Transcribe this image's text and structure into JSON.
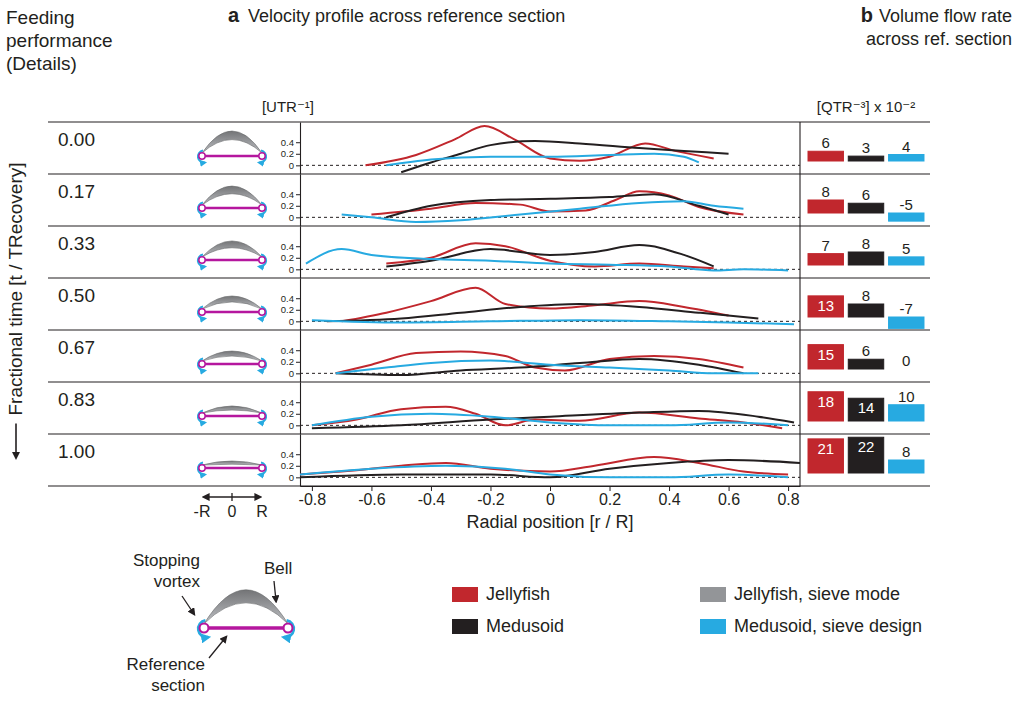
{
  "figure": {
    "heading": "Feeding performance (Details)",
    "time_axis_label": "Fractional time [t / TRecovery]",
    "times": [
      {
        "value": 0,
        "label": "0.00"
      },
      {
        "value": 0.17,
        "label": "0.17"
      },
      {
        "value": 0.33,
        "label": "0.33"
      },
      {
        "value": 0.5,
        "label": "0.50"
      },
      {
        "value": 0.67,
        "label": "0.67"
      },
      {
        "value": 0.83,
        "label": "0.83"
      },
      {
        "value": 1,
        "label": "1.00"
      }
    ],
    "schematic_axis": [
      "-R",
      "0",
      "R"
    ],
    "schematic_labels": {
      "vortex": "Stopping vortex",
      "bell": "Bell",
      "section": "Reference section"
    },
    "bell_legend": {
      "name": "Jellyfish, sieve mode",
      "color": "#939598"
    }
  },
  "chart_data": [
    {
      "type": "line",
      "panel_label": "a",
      "title": "Velocity profile across reference section",
      "ylabel": "[UTR⁻¹]",
      "xlabel": "Radial position [r / R]",
      "xlim": [
        -0.84,
        0.84
      ],
      "xticks": [
        -0.8,
        -0.6,
        -0.4,
        -0.2,
        0,
        0.2,
        0.4,
        0.6,
        0.8
      ],
      "ylim": [
        -0.15,
        0.75
      ],
      "yticks": [
        0,
        0.2,
        0.4
      ],
      "legend": "bottom",
      "series": [
        {
          "name": "Jellyfish",
          "color": "#c1272d",
          "rows": [
            {
              "x": [
                -0.62,
                -0.45,
                -0.32,
                -0.22,
                -0.12,
                0,
                0.1,
                0.2,
                0.32,
                0.42,
                0.55
              ],
              "values": [
                0.0,
                0.18,
                0.45,
                0.68,
                0.45,
                0.12,
                0.08,
                0.15,
                0.38,
                0.25,
                0.12
              ]
            },
            {
              "x": [
                -0.6,
                -0.4,
                -0.25,
                -0.1,
                0,
                0.12,
                0.22,
                0.3,
                0.4,
                0.5,
                0.65
              ],
              "values": [
                0.05,
                0.15,
                0.25,
                0.22,
                0.1,
                0.12,
                0.3,
                0.45,
                0.38,
                0.18,
                0.05
              ]
            },
            {
              "x": [
                -0.55,
                -0.4,
                -0.25,
                -0.15,
                0,
                0.15,
                0.3,
                0.45,
                0.55
              ],
              "values": [
                0.1,
                0.2,
                0.45,
                0.4,
                0.15,
                0.05,
                0.1,
                0.05,
                0.02
              ]
            },
            {
              "x": [
                -0.7,
                -0.55,
                -0.4,
                -0.25,
                -0.15,
                0,
                0.15,
                0.3,
                0.45,
                0.6
              ],
              "values": [
                0.0,
                0.15,
                0.35,
                0.58,
                0.3,
                0.22,
                0.28,
                0.35,
                0.25,
                0.1
              ]
            },
            {
              "x": [
                -0.72,
                -0.6,
                -0.45,
                -0.3,
                -0.15,
                -0.05,
                0.05,
                0.2,
                0.35,
                0.5,
                0.65
              ],
              "values": [
                0.0,
                0.15,
                0.35,
                0.38,
                0.3,
                0.1,
                0.05,
                0.25,
                0.3,
                0.25,
                0.1
              ]
            },
            {
              "x": [
                -0.8,
                -0.65,
                -0.5,
                -0.35,
                -0.25,
                -0.15,
                -0.05,
                0.1,
                0.3,
                0.5,
                0.65,
                0.78
              ],
              "values": [
                0.0,
                0.1,
                0.28,
                0.32,
                0.2,
                0.0,
                0.1,
                0.08,
                0.22,
                0.12,
                0.05,
                -0.05
              ]
            },
            {
              "x": [
                -0.84,
                -0.7,
                -0.5,
                -0.35,
                -0.2,
                0,
                0.15,
                0.35,
                0.5,
                0.65,
                0.8
              ],
              "values": [
                0.05,
                0.1,
                0.2,
                0.25,
                0.15,
                0.1,
                0.2,
                0.35,
                0.25,
                0.1,
                0.05
              ]
            }
          ]
        },
        {
          "name": "Medusoid",
          "color": "#231f20",
          "rows": [
            {
              "x": [
                -0.5,
                -0.4,
                -0.3,
                -0.2,
                -0.05,
                0.1,
                0.3,
                0.45,
                0.6
              ],
              "values": [
                -0.12,
                0.05,
                0.2,
                0.35,
                0.42,
                0.38,
                0.3,
                0.25,
                0.2
              ]
            },
            {
              "x": [
                -0.55,
                -0.4,
                -0.2,
                0,
                0.2,
                0.35,
                0.5,
                0.6
              ],
              "values": [
                0.0,
                0.2,
                0.3,
                0.32,
                0.35,
                0.4,
                0.2,
                0.05
              ]
            },
            {
              "x": [
                -0.55,
                -0.4,
                -0.2,
                0,
                0.15,
                0.3,
                0.45,
                0.55
              ],
              "values": [
                0.05,
                0.15,
                0.35,
                0.25,
                0.3,
                0.42,
                0.25,
                0.05
              ]
            },
            {
              "x": [
                -0.75,
                -0.5,
                -0.3,
                -0.1,
                0.1,
                0.3,
                0.5,
                0.7
              ],
              "values": [
                0.0,
                0.05,
                0.15,
                0.25,
                0.3,
                0.25,
                0.15,
                0.05
              ]
            },
            {
              "x": [
                -0.72,
                -0.5,
                -0.3,
                -0.1,
                0.1,
                0.3,
                0.5,
                0.65
              ],
              "values": [
                0.0,
                -0.03,
                0.05,
                0.1,
                0.18,
                0.25,
                0.15,
                0.0
              ]
            },
            {
              "x": [
                -0.8,
                -0.5,
                -0.2,
                0,
                0.3,
                0.5,
                0.7,
                0.82
              ],
              "values": [
                -0.05,
                0.0,
                0.1,
                0.15,
                0.22,
                0.25,
                0.15,
                0.05
              ]
            },
            {
              "x": [
                -0.84,
                -0.5,
                -0.2,
                0,
                0.2,
                0.4,
                0.6,
                0.84
              ],
              "values": [
                0.0,
                0.05,
                0.05,
                0.0,
                0.15,
                0.25,
                0.3,
                0.25
              ]
            }
          ]
        },
        {
          "name": "Medusoid, sieve design",
          "color": "#27aae1",
          "rows": [
            {
              "x": [
                -0.55,
                -0.4,
                -0.2,
                0,
                0.2,
                0.35,
                0.45,
                0.5
              ],
              "values": [
                0.0,
                0.1,
                0.15,
                0.15,
                0.18,
                0.2,
                0.15,
                0.05
              ]
            },
            {
              "x": [
                -0.7,
                -0.6,
                -0.45,
                -0.3,
                -0.1,
                0.1,
                0.3,
                0.45,
                0.55,
                0.65
              ],
              "values": [
                0.05,
                0.0,
                -0.08,
                -0.05,
                0.05,
                0.15,
                0.25,
                0.28,
                0.2,
                0.15
              ]
            },
            {
              "x": [
                -0.82,
                -0.7,
                -0.6,
                -0.4,
                -0.2,
                0,
                0.2,
                0.4,
                0.55,
                0.65,
                0.8
              ],
              "values": [
                0.1,
                0.35,
                0.25,
                0.18,
                0.15,
                0.1,
                0.08,
                0.05,
                -0.02,
                0.0,
                -0.02
              ]
            },
            {
              "x": [
                -0.8,
                -0.5,
                -0.2,
                0.1,
                0.4,
                0.6,
                0.82
              ],
              "values": [
                0.02,
                -0.02,
                0.0,
                0.02,
                0.0,
                -0.02,
                -0.05
              ]
            },
            {
              "x": [
                -0.72,
                -0.55,
                -0.4,
                -0.2,
                0,
                0.2,
                0.4,
                0.55,
                0.7
              ],
              "values": [
                0.0,
                0.1,
                0.18,
                0.22,
                0.15,
                0.1,
                0.05,
                0.0,
                0.0
              ]
            },
            {
              "x": [
                -0.8,
                -0.6,
                -0.4,
                -0.2,
                0,
                0.2,
                0.4,
                0.6,
                0.8
              ],
              "values": [
                0.0,
                0.15,
                0.2,
                0.15,
                0.05,
                0.0,
                0.0,
                0.05,
                0.0
              ]
            },
            {
              "x": [
                -0.84,
                -0.6,
                -0.35,
                -0.15,
                0,
                0.2,
                0.4,
                0.6,
                0.8
              ],
              "values": [
                0.05,
                0.15,
                0.2,
                0.15,
                0.05,
                0.0,
                0.0,
                0.05,
                0.0
              ]
            }
          ]
        }
      ]
    },
    {
      "type": "bar",
      "panel_label": "b",
      "title": "Volume flow rate across ref. section",
      "ylabel": "[QTR⁻³] x 10⁻²",
      "ylim": [
        -8,
        24
      ],
      "tick_labels": false,
      "data_labels": true,
      "series": [
        {
          "color": "#c1272d",
          "values": [
            6,
            8,
            7,
            13,
            15,
            18,
            21
          ]
        },
        {
          "color": "#231f20",
          "values": [
            3,
            6,
            8,
            8,
            6,
            14,
            22
          ]
        },
        {
          "color": "#27aae1",
          "values": [
            4,
            -5,
            5,
            -7,
            0,
            10,
            8
          ]
        }
      ]
    }
  ]
}
